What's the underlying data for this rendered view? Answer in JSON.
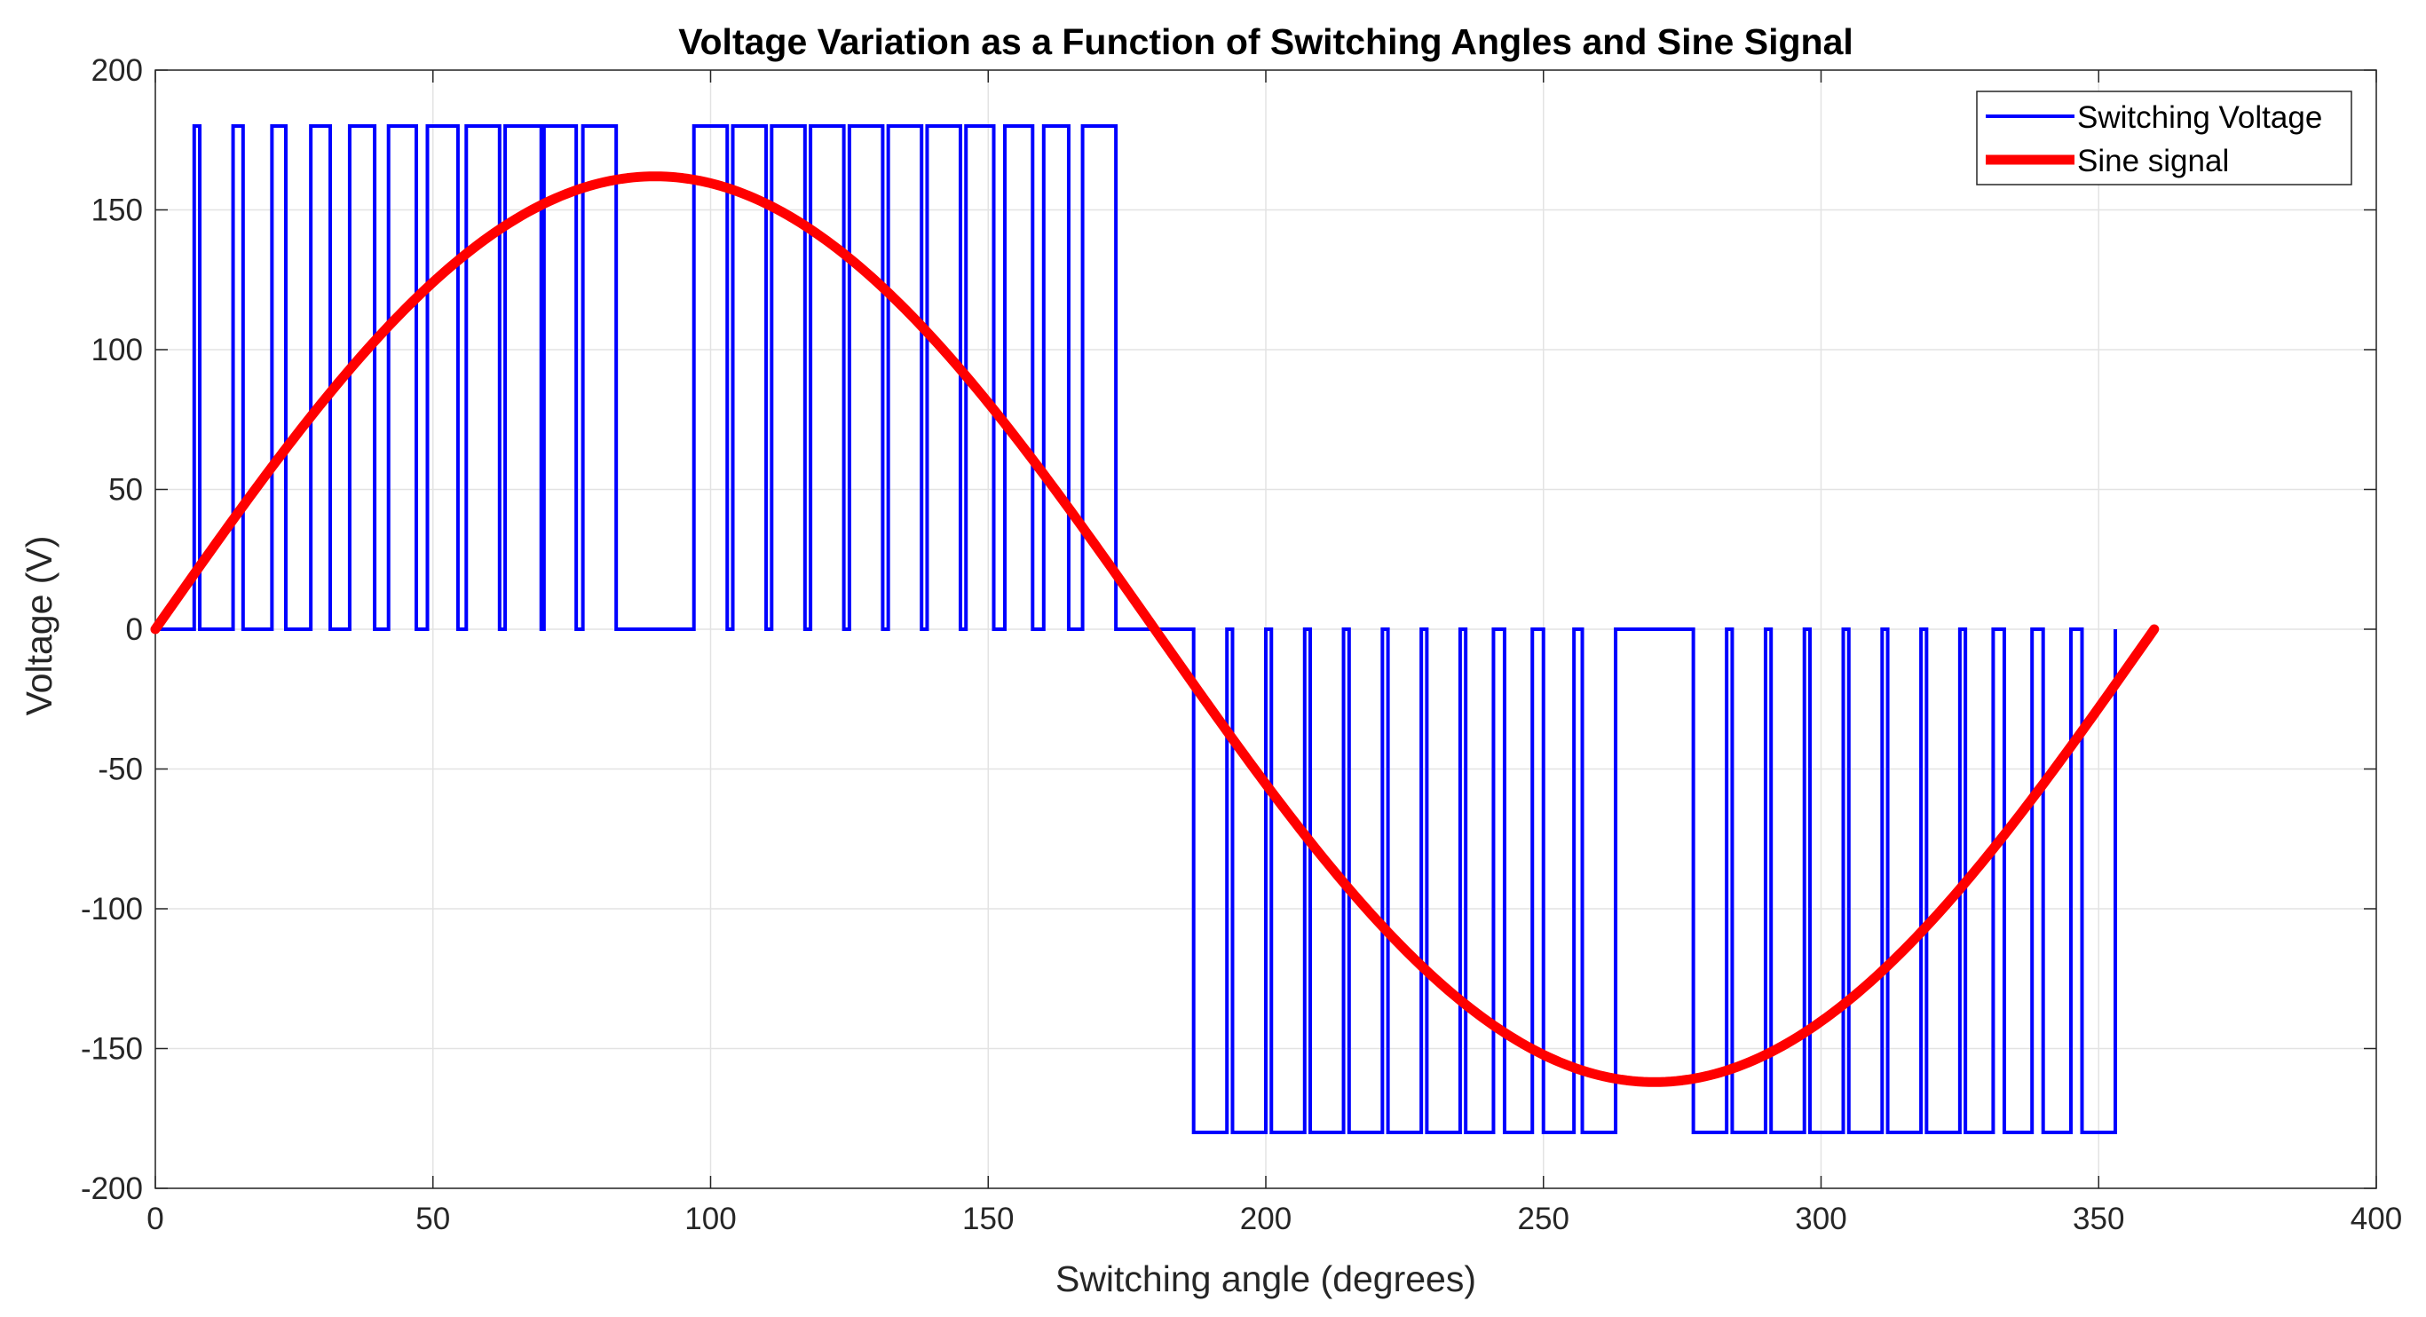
{
  "chart_data": {
    "type": "line",
    "title": "Voltage Variation as a Function of Switching Angles and Sine Signal",
    "xlabel": "Switching angle (degrees)",
    "ylabel": "Voltage (V)",
    "xlim": [
      0,
      400
    ],
    "ylim": [
      -200,
      200
    ],
    "xticks": [
      0,
      50,
      100,
      150,
      200,
      250,
      300,
      350,
      400
    ],
    "yticks": [
      200,
      150,
      100,
      50,
      0,
      -50,
      -100,
      -150,
      -200
    ],
    "grid": true,
    "legend_position": "top-right",
    "series": [
      {
        "name": "Switching Voltage",
        "color": "#0000ff",
        "style": "step",
        "amplitude": 180,
        "pulses": [
          [
            7,
            8
          ],
          [
            14,
            15.8
          ],
          [
            21,
            23.5
          ],
          [
            28,
            31.5
          ],
          [
            35,
            39.5
          ],
          [
            42,
            47
          ],
          [
            49,
            54.5
          ],
          [
            56,
            62
          ],
          [
            63,
            69.5
          ],
          [
            70,
            75.8
          ],
          [
            77,
            83
          ],
          [
            97,
            103
          ],
          [
            104,
            110
          ],
          [
            111,
            117
          ],
          [
            118,
            124
          ],
          [
            125,
            131
          ],
          [
            132,
            138
          ],
          [
            139,
            145
          ],
          [
            146,
            151
          ],
          [
            153,
            158
          ],
          [
            160,
            164.5
          ],
          [
            167,
            173
          ]
        ],
        "negative_pulses": [
          [
            187,
            193
          ],
          [
            194,
            200
          ],
          [
            201,
            207
          ],
          [
            208,
            214
          ],
          [
            215,
            221
          ],
          [
            222,
            228
          ],
          [
            229,
            235
          ],
          [
            236,
            241
          ],
          [
            243,
            248
          ],
          [
            250,
            255.5
          ],
          [
            257,
            263
          ],
          [
            277,
            283
          ],
          [
            284,
            290
          ],
          [
            291,
            297
          ],
          [
            298,
            304
          ],
          [
            305,
            311
          ],
          [
            312,
            318
          ],
          [
            319,
            325
          ],
          [
            326,
            331
          ],
          [
            333,
            338
          ],
          [
            340,
            345
          ],
          [
            347,
            353
          ]
        ]
      },
      {
        "name": "Sine signal",
        "color": "#ff0000",
        "style": "line",
        "amplitude": 162,
        "x": [
          0,
          15,
          30,
          45,
          60,
          75,
          90,
          105,
          120,
          135,
          150,
          165,
          180,
          195,
          210,
          225,
          240,
          255,
          270,
          285,
          300,
          315,
          330,
          345,
          360
        ],
        "values": [
          0,
          41.9,
          81,
          114.6,
          140.3,
          156.5,
          162,
          156.5,
          140.3,
          114.6,
          81,
          41.9,
          0,
          -41.9,
          -81,
          -114.6,
          -140.3,
          -156.5,
          -162,
          -156.5,
          -140.3,
          -114.6,
          -81,
          -41.9,
          0
        ]
      }
    ]
  },
  "colors": {
    "switching": "#0000ff",
    "sine": "#ff0000",
    "grid": "#e3e3e3",
    "axis": "#262626"
  }
}
